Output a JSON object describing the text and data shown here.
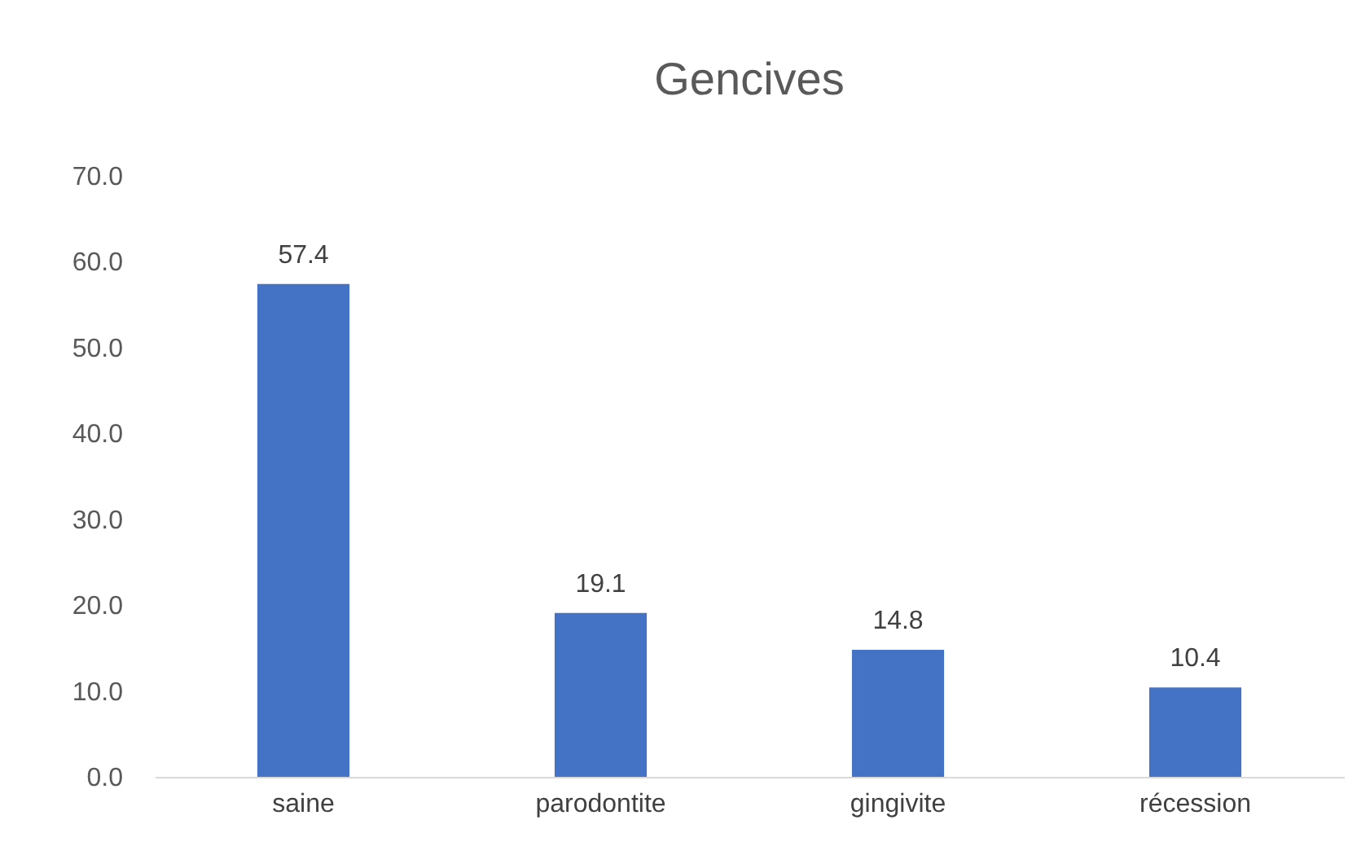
{
  "chart_data": {
    "type": "bar",
    "title": "Gencives",
    "categories": [
      "saine",
      "parodontite",
      "gingivite",
      "récession"
    ],
    "values": [
      57.4,
      19.1,
      14.8,
      10.4
    ],
    "color": "#4472c4",
    "ylim": [
      0,
      70
    ],
    "yticks": [
      {
        "value": 0,
        "label": "0.0"
      },
      {
        "value": 10,
        "label": "10.0"
      },
      {
        "value": 20,
        "label": "20.0"
      },
      {
        "value": 30,
        "label": "30.0"
      },
      {
        "value": 40,
        "label": "40.0"
      },
      {
        "value": 50,
        "label": "50.0"
      },
      {
        "value": 60,
        "label": "60.0"
      },
      {
        "value": 70,
        "label": "70.0"
      }
    ],
    "data_labels": true,
    "grid": false
  }
}
